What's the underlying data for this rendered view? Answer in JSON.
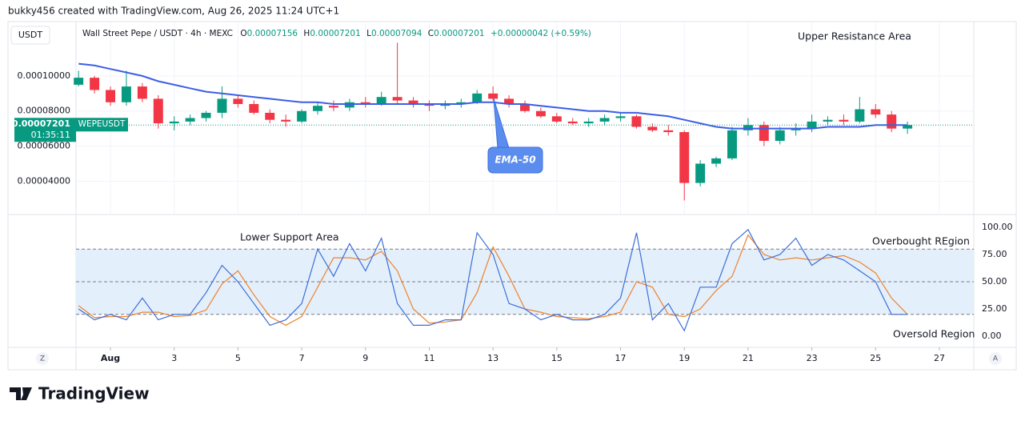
{
  "header": {
    "caption": "bukky456 created with TradingView.com, Aug 26, 2025 11:24 UTC+1",
    "logo": "TradingView",
    "left_button": "Z",
    "right_button": "A"
  },
  "chart_data": [
    {
      "type": "candlestick",
      "currency": "USDT",
      "symbol": "Wall Street Pepe / USDT · 4h · MEXC",
      "ohlc": [
        {
          "key": "O",
          "value": "0.00007156"
        },
        {
          "key": "H",
          "value": "0.00007201"
        },
        {
          "key": "L",
          "value": "0.00007094"
        },
        {
          "key": "C",
          "value": "0.00007201"
        }
      ],
      "change": "+0.00000042 (+0.59%)",
      "annotations": [
        "Upper Resistance Area"
      ],
      "last_price": {
        "value": 7.201e-05,
        "label": "0.00007201"
      },
      "last_symbol": "WEPEUSDT",
      "countdown": "01:35:11",
      "up_color": "#089981",
      "down_color": "#f23645",
      "xlim": [
        -0.08,
        28.08
      ],
      "xticks": [
        {
          "value": 1,
          "label": "Aug"
        },
        3,
        5,
        7,
        9,
        11,
        13,
        15,
        17,
        19,
        21,
        23,
        25,
        27
      ],
      "ylim": [
        2.1e-05,
        0.000131
      ],
      "yticks": [
        {
          "value": 4e-05,
          "label": "0.00004000"
        },
        {
          "value": 6e-05,
          "label": "0.00006000"
        },
        {
          "value": 8e-05,
          "label": "0.00008000"
        },
        {
          "value": 0.0001,
          "label": "0.00010000"
        }
      ],
      "grid": true,
      "x": [
        0,
        0.5,
        1,
        1.5,
        2,
        2.5,
        3,
        3.5,
        4,
        4.5,
        5,
        5.5,
        6,
        6.5,
        7,
        7.5,
        8,
        8.5,
        9,
        9.5,
        10,
        10.5,
        11,
        11.5,
        12,
        12.5,
        13,
        13.5,
        14,
        14.5,
        15,
        15.5,
        16,
        16.5,
        17,
        17.5,
        18,
        18.5,
        19,
        19.5,
        20,
        20.5,
        21,
        21.5,
        22,
        22.5,
        23,
        23.5,
        24,
        24.5,
        25,
        25.5,
        26
      ],
      "open": [
        9.5e-05,
        9.9e-05,
        9.2e-05,
        8.5e-05,
        9.4e-05,
        8.7e-05,
        7.3e-05,
        7.4e-05,
        7.6e-05,
        7.9e-05,
        8.7e-05,
        8.4e-05,
        7.9e-05,
        7.5e-05,
        7.4e-05,
        8e-05,
        8.3e-05,
        8.2e-05,
        8.5e-05,
        8.4e-05,
        8.8e-05,
        8.6e-05,
        8.4e-05,
        8.3e-05,
        8.4e-05,
        8.5e-05,
        9e-05,
        8.7e-05,
        8.4e-05,
        8e-05,
        7.7e-05,
        7.4e-05,
        7.3e-05,
        7.4e-05,
        7.6e-05,
        7.7e-05,
        7.1e-05,
        6.9e-05,
        6.8e-05,
        3.9e-05,
        5e-05,
        5.3e-05,
        6.9e-05,
        7.2e-05,
        6.3e-05,
        6.9e-05,
        7e-05,
        7.4e-05,
        7.5e-05,
        7.4e-05,
        8.1e-05,
        7.8e-05,
        7e-05
      ],
      "high": [
        0.000103,
        0.0001,
        9.4e-05,
        0.000103,
        9.6e-05,
        8.9e-05,
        7.7e-05,
        7.8e-05,
        8e-05,
        9.4e-05,
        8.9e-05,
        8.6e-05,
        8.1e-05,
        7.8e-05,
        8.1e-05,
        8.5e-05,
        8.6e-05,
        8.7e-05,
        8.8e-05,
        9.1e-05,
        0.000119,
        8.8e-05,
        8.6e-05,
        8.6e-05,
        8.7e-05,
        9.2e-05,
        9.4e-05,
        8.9e-05,
        8.6e-05,
        8.2e-05,
        7.9e-05,
        7.6e-05,
        7.6e-05,
        7.8e-05,
        7.9e-05,
        7.8e-05,
        7.3e-05,
        7.2e-05,
        6.9e-05,
        5.2e-05,
        5.4e-05,
        7.1e-05,
        7.6e-05,
        7.4e-05,
        7.1e-05,
        7.3e-05,
        7.8e-05,
        7.7e-05,
        7.8e-05,
        8.8e-05,
        8.4e-05,
        8e-05,
        7.4e-05
      ],
      "low": [
        9.4e-05,
        9e-05,
        8.3e-05,
        8.3e-05,
        8.5e-05,
        7e-05,
        6.9e-05,
        7.2e-05,
        7.4e-05,
        7.6e-05,
        8.2e-05,
        7.8e-05,
        7.3e-05,
        7.1e-05,
        7.3e-05,
        7.8e-05,
        8e-05,
        8e-05,
        8.2e-05,
        8.3e-05,
        8.4e-05,
        8.2e-05,
        8e-05,
        8.1e-05,
        8.2e-05,
        8.4e-05,
        8.6e-05,
        8.2e-05,
        7.9e-05,
        7.6e-05,
        7.3e-05,
        7.2e-05,
        7.1e-05,
        7.2e-05,
        7.4e-05,
        7e-05,
        6.8e-05,
        6.6e-05,
        2.9e-05,
        3.7e-05,
        4.8e-05,
        5.2e-05,
        6.6e-05,
        6e-05,
        6.1e-05,
        6.6e-05,
        6.8e-05,
        7.2e-05,
        7.2e-05,
        7.3e-05,
        7.6e-05,
        6.8e-05,
        6.7e-05
      ],
      "close": [
        9.9e-05,
        9.2e-05,
        8.5e-05,
        9.4e-05,
        8.7e-05,
        7.3e-05,
        7.4e-05,
        7.6e-05,
        7.9e-05,
        8.7e-05,
        8.4e-05,
        7.9e-05,
        7.5e-05,
        7.4e-05,
        8e-05,
        8.3e-05,
        8.2e-05,
        8.5e-05,
        8.4e-05,
        8.8e-05,
        8.6e-05,
        8.4e-05,
        8.3e-05,
        8.4e-05,
        8.5e-05,
        9e-05,
        8.7e-05,
        8.4e-05,
        8e-05,
        7.7e-05,
        7.4e-05,
        7.3e-05,
        7.4e-05,
        7.6e-05,
        7.7e-05,
        7.1e-05,
        6.9e-05,
        6.8e-05,
        3.9e-05,
        5e-05,
        5.3e-05,
        6.9e-05,
        7.2e-05,
        6.3e-05,
        6.9e-05,
        7e-05,
        7.4e-05,
        7.5e-05,
        7.4e-05,
        8.1e-05,
        7.8e-05,
        7e-05,
        7.2e-05
      ],
      "series": [
        {
          "name": "EMA-50",
          "color": "#3c5ee6",
          "values": [
            0.000107,
            0.000106,
            0.000104,
            0.000102,
            0.0001,
            9.7e-05,
            9.5e-05,
            9.3e-05,
            9.1e-05,
            9e-05,
            8.9e-05,
            8.8e-05,
            8.7e-05,
            8.6e-05,
            8.5e-05,
            8.5e-05,
            8.4e-05,
            8.4e-05,
            8.4e-05,
            8.4e-05,
            8.4e-05,
            8.4e-05,
            8.4e-05,
            8.4e-05,
            8.4e-05,
            8.5e-05,
            8.5e-05,
            8.4e-05,
            8.4e-05,
            8.3e-05,
            8.2e-05,
            8.1e-05,
            8e-05,
            8e-05,
            7.9e-05,
            7.9e-05,
            7.8e-05,
            7.7e-05,
            7.5e-05,
            7.3e-05,
            7.1e-05,
            7e-05,
            7e-05,
            7e-05,
            7e-05,
            7e-05,
            7e-05,
            7.1e-05,
            7.1e-05,
            7.1e-05,
            7.2e-05,
            7.2e-05,
            7.2e-05
          ]
        }
      ]
    },
    {
      "type": "line",
      "annotations": [
        "Lower Support Area",
        "Overbought REgion",
        "Oversold Region"
      ],
      "xlim": [
        -0.08,
        28.08
      ],
      "xticks": [
        {
          "value": 1,
          "label": "Aug"
        },
        3,
        5,
        7,
        9,
        11,
        13,
        15,
        17,
        19,
        21,
        23,
        25,
        27
      ],
      "ylim": [
        -10.3,
        111.8
      ],
      "yticks": [
        {
          "value": 0,
          "label": "0.00"
        },
        {
          "value": 25,
          "label": "25.00"
        },
        {
          "value": 50,
          "label": "50.00"
        },
        {
          "value": 75,
          "label": "75.00"
        },
        {
          "value": 100,
          "label": "100.00"
        }
      ],
      "levels": [
        20,
        50,
        80
      ],
      "band_color": "#e3effb",
      "x": [
        0,
        0.5,
        1,
        1.5,
        2,
        2.5,
        3,
        3.5,
        4,
        4.5,
        5,
        5.5,
        6,
        6.5,
        7,
        7.5,
        8,
        8.5,
        9,
        9.5,
        10,
        10.5,
        11,
        11.5,
        12,
        12.5,
        13,
        13.5,
        14,
        14.5,
        15,
        15.5,
        16,
        16.5,
        17,
        17.5,
        18,
        18.5,
        19,
        19.5,
        20,
        20.5,
        21,
        21.5,
        22,
        22.5,
        23,
        23.5,
        24,
        24.5,
        25,
        25.5,
        26
      ],
      "series": [
        {
          "color": "#3d6fd9",
          "values": [
            25,
            15,
            20,
            15,
            35,
            15,
            20,
            20,
            40,
            65,
            50,
            30,
            10,
            15,
            30,
            80,
            55,
            85,
            60,
            90,
            30,
            10,
            10,
            15,
            15,
            95,
            75,
            30,
            25,
            15,
            20,
            15,
            15,
            20,
            35,
            95,
            15,
            30,
            5,
            45,
            45,
            85,
            98,
            70,
            75,
            90,
            65,
            75,
            70,
            60,
            50,
            20,
            20
          ]
        },
        {
          "color": "#f0832c",
          "values": [
            28,
            17,
            18,
            18,
            22,
            22,
            18,
            19,
            24,
            48,
            60,
            38,
            18,
            10,
            18,
            45,
            72,
            72,
            70,
            78,
            60,
            25,
            12,
            13,
            15,
            40,
            82,
            55,
            25,
            22,
            18,
            17,
            16,
            18,
            22,
            50,
            45,
            20,
            18,
            25,
            42,
            55,
            93,
            75,
            70,
            72,
            70,
            72,
            74,
            68,
            58,
            35,
            20
          ]
        }
      ]
    }
  ]
}
